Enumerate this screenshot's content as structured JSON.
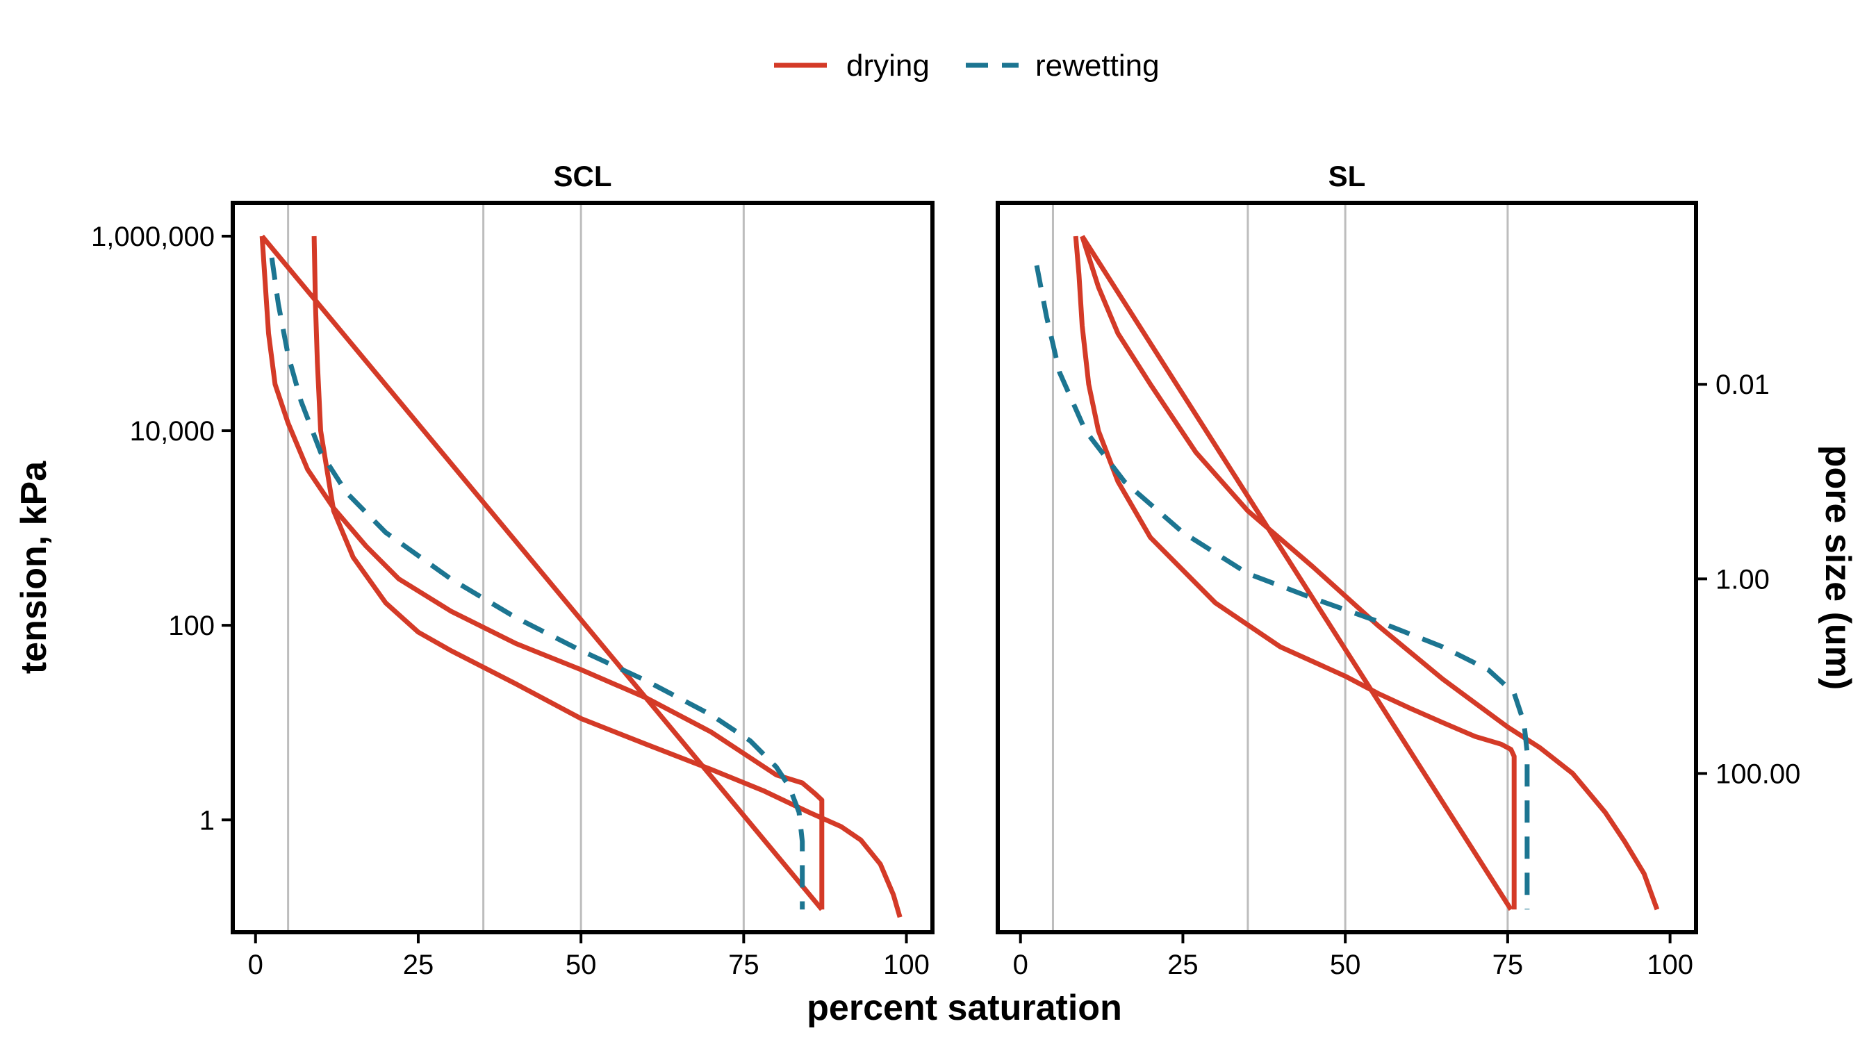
{
  "colors": {
    "drying": "#d43a27",
    "rewetting": "#1c7591",
    "grid": "#bdbdbd",
    "frame": "#000000"
  },
  "legend": {
    "items": [
      {
        "key": "drying",
        "label": "drying"
      },
      {
        "key": "rewetting",
        "label": "rewetting"
      }
    ]
  },
  "axes": {
    "xlabel": "percent saturation",
    "ylabel": "tension, kPa",
    "y2label": "pore size (um)",
    "xticks": [
      0,
      25,
      50,
      75,
      100
    ],
    "xtick_labels": [
      "0",
      "25",
      "50",
      "75",
      "100"
    ],
    "yticks": [
      1,
      100,
      10000,
      1000000
    ],
    "ytick_labels": [
      "1",
      "100",
      "10,000",
      "1,000,000"
    ],
    "y2ticks": [
      0.01,
      1.0,
      100.0
    ],
    "y2tick_labels": [
      "0.01",
      "1.00",
      "100.00"
    ]
  },
  "chart_data": {
    "type": "line",
    "xlabel": "percent saturation",
    "ylabel": "tension, kPa",
    "y2label": "pore size (um)",
    "xlim": [
      -3.5,
      104
    ],
    "ylim": [
      0.07,
      2200000
    ],
    "y_scale": "log",
    "y2_scale": "log (reversed, pore size)",
    "grid": "vertical lines at x = 5, 35, 50, 75",
    "vlines": [
      5,
      35,
      50,
      75
    ],
    "legend_position": "top",
    "panels": [
      {
        "title": "SCL",
        "series": [
          {
            "name": "drying",
            "points": [
              [
                99,
                0.1
              ],
              [
                98,
                0.17
              ],
              [
                96,
                0.35
              ],
              [
                93,
                0.62
              ],
              [
                90,
                0.85
              ],
              [
                85,
                1.2
              ],
              [
                78,
                2.0
              ],
              [
                70,
                3.3
              ],
              [
                60,
                6
              ],
              [
                50,
                11
              ],
              [
                40,
                25
              ],
              [
                30,
                55
              ],
              [
                25,
                85
              ],
              [
                20,
                170
              ],
              [
                15,
                500
              ],
              [
                12,
                1500
              ],
              [
                10,
                10000
              ],
              [
                9.5,
                50000
              ],
              [
                9.2,
                200000
              ],
              [
                9,
                1000000
              ]
            ]
          },
          {
            "name": "drying",
            "points": [
              [
                1,
                1000000
              ],
              [
                2,
                100000
              ],
              [
                3,
                30000
              ],
              [
                5,
                12000
              ],
              [
                8,
                4000
              ],
              [
                12,
                1600
              ],
              [
                17,
                650
              ],
              [
                22,
                300
              ],
              [
                30,
                140
              ],
              [
                40,
                65
              ],
              [
                50,
                35
              ],
              [
                60,
                18
              ],
              [
                70,
                8
              ],
              [
                80,
                2.9
              ],
              [
                84,
                2.4
              ],
              [
                86,
                1.85
              ],
              [
                87,
                1.6
              ],
              [
                87,
                1.2
              ],
              [
                87,
                0.6
              ],
              [
                87,
                0.3
              ],
              [
                87,
                0.12
              ]
            ]
          },
          {
            "name": "drying",
            "points": [
              [
                1,
                1000000
              ],
              [
                87,
                0.12
              ]
            ]
          },
          {
            "name": "rewetting",
            "points": [
              [
                2.5,
                600000
              ],
              [
                3.5,
                200000
              ],
              [
                5,
                60000
              ],
              [
                7,
                20000
              ],
              [
                10,
                6000
              ],
              [
                14,
                2300
              ],
              [
                20,
                900
              ],
              [
                30,
                300
              ],
              [
                40,
                120
              ],
              [
                50,
                55
              ],
              [
                60,
                27
              ],
              [
                70,
                12
              ],
              [
                76,
                6.5
              ],
              [
                80,
                3.5
              ],
              [
                82,
                2.2
              ],
              [
                83.5,
                1.2
              ],
              [
                84,
                0.6
              ],
              [
                84,
                0.12
              ]
            ]
          }
        ]
      },
      {
        "title": "SL",
        "series": [
          {
            "name": "drying",
            "points": [
              [
                8.5,
                1000000
              ],
              [
                9,
                400000
              ],
              [
                9.5,
                120000
              ],
              [
                10.5,
                30000
              ],
              [
                12,
                10000
              ],
              [
                15,
                3000
              ],
              [
                20,
                800
              ],
              [
                30,
                170
              ],
              [
                40,
                60
              ],
              [
                50,
                30
              ],
              [
                55,
                20
              ],
              [
                60,
                14
              ],
              [
                65,
                10
              ],
              [
                70,
                7.2
              ],
              [
                74,
                6
              ],
              [
                75.5,
                5.3
              ],
              [
                76,
                4.5
              ],
              [
                76,
                2
              ],
              [
                76,
                0.5
              ],
              [
                76,
                0.12
              ]
            ]
          },
          {
            "name": "drying",
            "points": [
              [
                9.5,
                1000000
              ],
              [
                12,
                300000
              ],
              [
                15,
                100000
              ],
              [
                20,
                30000
              ],
              [
                27,
                6000
              ],
              [
                35,
                1500
              ],
              [
                45,
                400
              ],
              [
                55,
                100
              ],
              [
                65,
                28
              ],
              [
                75,
                9
              ],
              [
                80,
                5.5
              ],
              [
                85,
                3
              ],
              [
                90,
                1.2
              ],
              [
                93,
                0.6
              ],
              [
                96,
                0.28
              ],
              [
                98,
                0.12
              ]
            ]
          },
          {
            "name": "drying",
            "points": [
              [
                9.5,
                1000000
              ],
              [
                75.5,
                0.12
              ]
            ]
          },
          {
            "name": "rewetting",
            "points": [
              [
                2.5,
                500000
              ],
              [
                4,
                150000
              ],
              [
                6,
                40000
              ],
              [
                10,
                10000
              ],
              [
                16,
                3000
              ],
              [
                25,
                900
              ],
              [
                35,
                340
              ],
              [
                45,
                190
              ],
              [
                55,
                110
              ],
              [
                65,
                60
              ],
              [
                72,
                35
              ],
              [
                76,
                20
              ],
              [
                77.5,
                10
              ],
              [
                78,
                5
              ],
              [
                78,
                2
              ],
              [
                78,
                0.5
              ],
              [
                78,
                0.12
              ]
            ]
          }
        ]
      }
    ]
  }
}
